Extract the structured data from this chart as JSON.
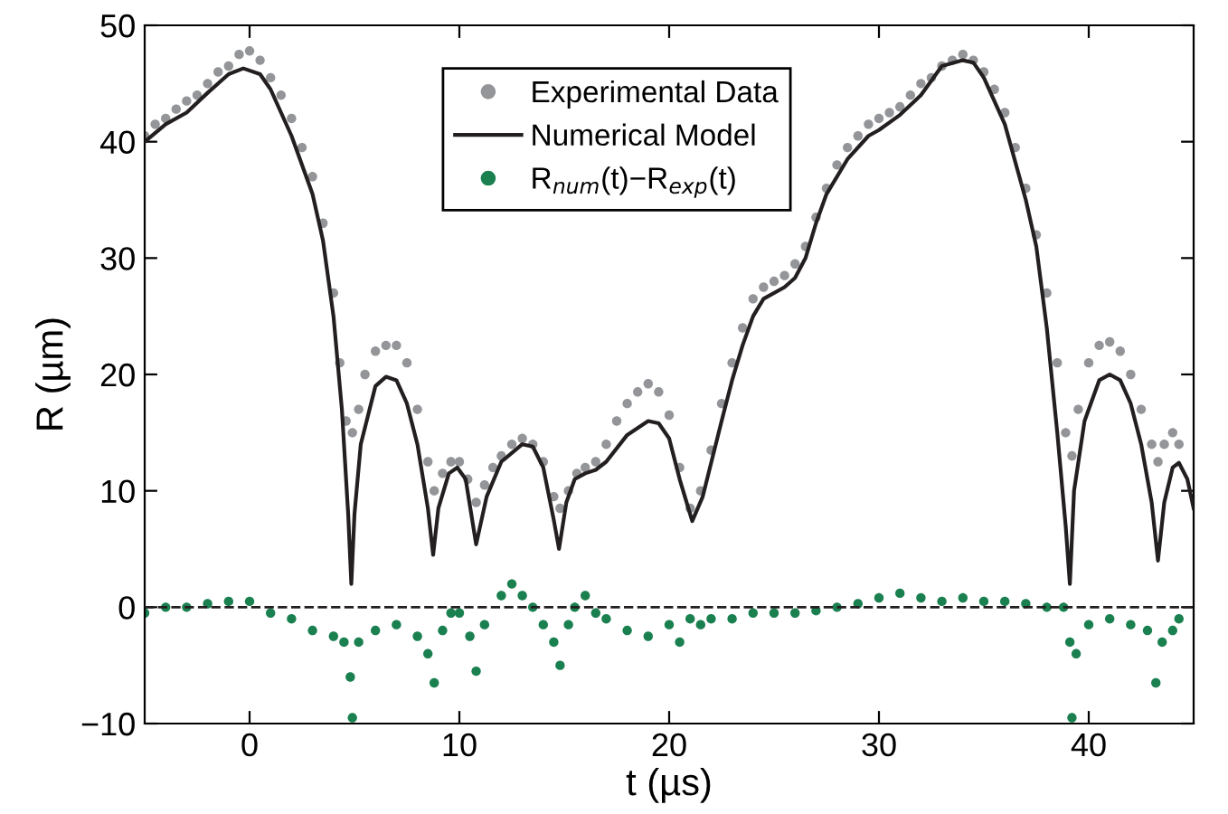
{
  "chart_data": {
    "type": "scatter",
    "xlabel": "t (µs)",
    "ylabel": "R (µm)",
    "xlim": [
      -5,
      45
    ],
    "xticks": [
      0,
      10,
      20,
      30,
      40
    ],
    "ylim": [
      -10,
      50
    ],
    "yticks": [
      -10,
      0,
      10,
      20,
      30,
      40,
      50
    ],
    "grid": false,
    "legend": "top",
    "marker": "circle",
    "ref_lines": [
      {
        "axis": "y",
        "value": 0,
        "color": "#231f20",
        "line_style": "dashed"
      }
    ],
    "series": [
      {
        "name": "Experimental Data",
        "color": "#939598",
        "x": [
          -5,
          -4.5,
          -4,
          -3.5,
          -3,
          -2.5,
          -2,
          -1.5,
          -1,
          -0.5,
          0,
          0.5,
          1,
          1.5,
          2,
          2.5,
          3,
          3.5,
          4,
          4.3,
          4.6,
          4.9,
          5.2,
          5.5,
          6,
          6.5,
          7,
          7.5,
          8,
          8.5,
          8.8,
          9.2,
          9.6,
          10,
          10.4,
          10.8,
          11.2,
          11.6,
          12,
          12.5,
          13,
          13.5,
          14,
          14.5,
          14.8,
          15.2,
          15.6,
          16,
          16.5,
          17,
          17.5,
          18,
          18.5,
          19,
          19.5,
          20,
          20.5,
          21,
          21.5,
          22,
          22.5,
          23,
          23.5,
          24,
          24.5,
          25,
          25.5,
          26,
          26.5,
          27,
          27.5,
          28,
          28.5,
          29,
          29.5,
          30,
          30.5,
          31,
          31.5,
          32,
          32.5,
          33,
          33.5,
          34,
          34.5,
          35,
          35.5,
          36,
          36.5,
          37,
          37.5,
          38,
          38.5,
          38.9,
          39.2,
          39.5,
          40,
          40.5,
          41,
          41.5,
          42,
          42.5,
          43,
          43.3,
          43.6,
          44,
          44.3
        ],
        "values": [
          40.5,
          41.5,
          42,
          42.8,
          43.5,
          44,
          45,
          46,
          46.5,
          47.5,
          47.8,
          47,
          45.5,
          44,
          42,
          39.5,
          37,
          33,
          27,
          21,
          16,
          15,
          17,
          20,
          22,
          22.5,
          22.5,
          21,
          17,
          12.5,
          10,
          11.5,
          12.5,
          12.5,
          11,
          9,
          10.5,
          12,
          13,
          14,
          14.5,
          14,
          12.5,
          9.5,
          8.5,
          10,
          11.5,
          12,
          12.5,
          14,
          16,
          17.5,
          18.5,
          19.2,
          18.5,
          16.5,
          12,
          8.5,
          10,
          13.5,
          17.5,
          21,
          24,
          26.5,
          27.5,
          28,
          28.5,
          29.5,
          31,
          33.5,
          36,
          38,
          39.5,
          40.5,
          41.5,
          42,
          42.5,
          43,
          44,
          45,
          45.5,
          46.5,
          47,
          47.5,
          47,
          46,
          44.5,
          42.5,
          39.5,
          36,
          32,
          27,
          21,
          15,
          13,
          17,
          21,
          22.5,
          22.8,
          22,
          20,
          17,
          14,
          12.5,
          14,
          15,
          14
        ]
      },
      {
        "name": "Numerical Model",
        "type": "line",
        "color": "#231f20",
        "marker": "none",
        "line_style": "solid",
        "x": [
          -5,
          -4,
          -3,
          -2,
          -1,
          -0.3,
          0.5,
          1,
          2,
          3,
          3.5,
          4,
          4.4,
          4.7,
          4.85,
          5.0,
          5.3,
          6,
          6.5,
          7,
          7.5,
          8,
          8.5,
          8.75,
          9,
          9.5,
          9.9,
          10.3,
          10.8,
          11.3,
          12,
          13,
          13.5,
          14,
          14.5,
          14.75,
          15.1,
          15.5,
          16,
          16.5,
          17,
          18,
          19,
          19.5,
          20,
          20.5,
          21.1,
          21.6,
          22.5,
          23,
          23.5,
          24,
          24.5,
          25.5,
          26,
          26.5,
          27,
          27.5,
          28.5,
          29.5,
          30,
          31,
          32,
          33,
          34,
          34.5,
          35,
          36,
          37,
          37.5,
          38,
          38.5,
          38.9,
          39.1,
          39.3,
          39.8,
          40.5,
          41,
          41.5,
          42,
          42.5,
          43,
          43.3,
          43.6,
          44,
          44.3,
          44.7,
          45
        ],
        "values": [
          40,
          41.5,
          42.5,
          44.2,
          45.8,
          46.3,
          45.8,
          44.5,
          40.5,
          35.5,
          31.5,
          25,
          17,
          8,
          2,
          8,
          14,
          19,
          19.8,
          19.5,
          17.5,
          14,
          8.5,
          4.5,
          8.5,
          11.5,
          12,
          11,
          5.4,
          9.5,
          12.5,
          14,
          13.8,
          12,
          7.5,
          5,
          9,
          11,
          11.5,
          11.8,
          12.5,
          14.8,
          16,
          15.8,
          14.5,
          11,
          7.4,
          9.5,
          16,
          19.5,
          22.5,
          25,
          26.5,
          27.5,
          28.3,
          30,
          33,
          35.5,
          38.5,
          40.5,
          41,
          42.3,
          44,
          46.5,
          47,
          46.8,
          45.5,
          41.5,
          35,
          31,
          24,
          15,
          7,
          2,
          10,
          16,
          19.5,
          20,
          19.5,
          17.5,
          14,
          9,
          4,
          9,
          12,
          12.4,
          11,
          8.5
        ]
      },
      {
        "name": "R$_{num}$(t)−R$_{exp}$(t)",
        "color": "#1a8050",
        "x": [
          -5,
          -4,
          -3,
          -2,
          -1,
          0,
          1,
          2,
          3,
          4,
          4.5,
          4.8,
          4.9,
          5.2,
          6,
          7,
          8,
          8.5,
          8.8,
          9.2,
          9.6,
          10,
          10.5,
          10.8,
          11.2,
          12,
          12.5,
          13,
          13.5,
          14,
          14.5,
          14.8,
          15.2,
          15.5,
          16,
          16.5,
          17,
          18,
          19,
          20,
          20.5,
          21,
          21.5,
          22,
          23,
          24,
          25,
          26,
          27,
          28,
          29,
          30,
          31,
          32,
          33,
          34,
          35,
          36,
          37,
          38,
          38.8,
          39.1,
          39.2,
          39.4,
          40,
          41,
          42,
          42.8,
          43.2,
          43.5,
          44,
          44.3
        ],
        "values": [
          -0.5,
          0,
          0,
          0.3,
          0.5,
          0.5,
          -0.5,
          -1,
          -2,
          -2.5,
          -3,
          -6,
          -9.5,
          -3,
          -2,
          -1.5,
          -2.5,
          -4,
          -6.5,
          -2,
          -0.5,
          -0.5,
          -2.5,
          -5.5,
          -1.5,
          1,
          2,
          1,
          0,
          -1.5,
          -3,
          -5,
          -1.5,
          0,
          1,
          -0.5,
          -1,
          -2,
          -2.5,
          -1.5,
          -3,
          -1,
          -1.5,
          -1,
          -1,
          -0.5,
          -0.5,
          -0.5,
          -0.3,
          0,
          0.3,
          0.8,
          1.2,
          0.8,
          0.5,
          0.8,
          0.5,
          0.5,
          0.3,
          0,
          0,
          -3,
          -9.5,
          -4,
          -1.5,
          -1,
          -1.5,
          -2,
          -6.5,
          -3,
          -2,
          -1
        ]
      }
    ]
  }
}
